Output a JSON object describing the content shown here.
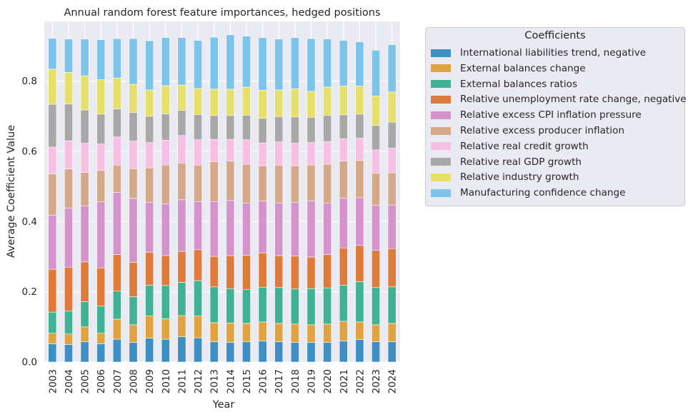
{
  "chart_data": {
    "type": "bar",
    "stacked": true,
    "title": "Annual random forest feature importances, hedged positions",
    "xlabel": "Year",
    "ylabel": "Average Coefficient Value",
    "ylim": [
      0,
      0.97
    ],
    "yticks": [
      0.0,
      0.2,
      0.4,
      0.6,
      0.8
    ],
    "ytick_labels": [
      "0.0",
      "0.2",
      "0.4",
      "0.6",
      "0.8"
    ],
    "grid": true,
    "legend_placement": "outside-right",
    "legend_title": "Coefficients",
    "categories": [
      "2003",
      "2004",
      "2005",
      "2006",
      "2007",
      "2008",
      "2009",
      "2010",
      "2011",
      "2012",
      "2013",
      "2014",
      "2015",
      "2016",
      "2017",
      "2018",
      "2019",
      "2020",
      "2021",
      "2022",
      "2023",
      "2024"
    ],
    "series": [
      {
        "name": "International liabilities trend, negative",
        "color": "#3d8fc4",
        "values": [
          0.052,
          0.05,
          0.058,
          0.052,
          0.065,
          0.056,
          0.068,
          0.065,
          0.072,
          0.069,
          0.058,
          0.056,
          0.058,
          0.06,
          0.058,
          0.056,
          0.056,
          0.056,
          0.06,
          0.064,
          0.058,
          0.058
        ]
      },
      {
        "name": "External balances change",
        "color": "#e1a33f",
        "values": [
          0.03,
          0.03,
          0.042,
          0.03,
          0.057,
          0.05,
          0.063,
          0.058,
          0.06,
          0.062,
          0.054,
          0.055,
          0.052,
          0.054,
          0.052,
          0.052,
          0.05,
          0.052,
          0.056,
          0.05,
          0.048,
          0.052
        ]
      },
      {
        "name": "External balances ratios",
        "color": "#41b392",
        "values": [
          0.06,
          0.065,
          0.072,
          0.078,
          0.08,
          0.08,
          0.088,
          0.095,
          0.095,
          0.101,
          0.102,
          0.098,
          0.097,
          0.099,
          0.102,
          0.1,
          0.103,
          0.103,
          0.103,
          0.115,
          0.106,
          0.104
        ]
      },
      {
        "name": "Relative unemployment rate change, negative",
        "color": "#de7b3a",
        "values": [
          0.122,
          0.125,
          0.113,
          0.108,
          0.104,
          0.098,
          0.094,
          0.085,
          0.088,
          0.088,
          0.087,
          0.094,
          0.097,
          0.098,
          0.091,
          0.094,
          0.09,
          0.095,
          0.106,
          0.103,
          0.106,
          0.109
        ]
      },
      {
        "name": "Relative excess CPI inflation pressure",
        "color": "#d494cb",
        "values": [
          0.154,
          0.168,
          0.16,
          0.188,
          0.177,
          0.182,
          0.142,
          0.148,
          0.147,
          0.137,
          0.156,
          0.157,
          0.149,
          0.148,
          0.15,
          0.153,
          0.16,
          0.147,
          0.142,
          0.136,
          0.128,
          0.124
        ]
      },
      {
        "name": "Relative excess producer inflation",
        "color": "#d4a888",
        "values": [
          0.118,
          0.112,
          0.095,
          0.09,
          0.078,
          0.085,
          0.098,
          0.11,
          0.105,
          0.104,
          0.113,
          0.112,
          0.11,
          0.1,
          0.108,
          0.104,
          0.102,
          0.11,
          0.105,
          0.106,
          0.092,
          0.092
        ]
      },
      {
        "name": "Relative real credit growth",
        "color": "#f7bfe4",
        "values": [
          0.076,
          0.08,
          0.083,
          0.075,
          0.08,
          0.078,
          0.072,
          0.071,
          0.078,
          0.072,
          0.064,
          0.062,
          0.07,
          0.065,
          0.066,
          0.064,
          0.064,
          0.065,
          0.064,
          0.064,
          0.066,
          0.07
        ]
      },
      {
        "name": "Relative real GDP growth",
        "color": "#a8a8a8",
        "values": [
          0.122,
          0.105,
          0.095,
          0.085,
          0.08,
          0.082,
          0.075,
          0.075,
          0.072,
          0.072,
          0.068,
          0.068,
          0.07,
          0.07,
          0.072,
          0.075,
          0.072,
          0.075,
          0.068,
          0.068,
          0.07,
          0.074
        ]
      },
      {
        "name": "Relative industry growth",
        "color": "#e6df6a",
        "values": [
          0.1,
          0.09,
          0.097,
          0.098,
          0.088,
          0.08,
          0.075,
          0.08,
          0.072,
          0.074,
          0.075,
          0.075,
          0.08,
          0.08,
          0.076,
          0.08,
          0.074,
          0.08,
          0.082,
          0.08,
          0.084,
          0.086
        ]
      },
      {
        "name": "Manufacturing confidence change",
        "color": "#7dc4ec",
        "values": [
          0.088,
          0.095,
          0.105,
          0.114,
          0.112,
          0.13,
          0.14,
          0.137,
          0.135,
          0.137,
          0.148,
          0.155,
          0.145,
          0.15,
          0.145,
          0.146,
          0.15,
          0.137,
          0.13,
          0.126,
          0.13,
          0.135
        ]
      }
    ]
  }
}
